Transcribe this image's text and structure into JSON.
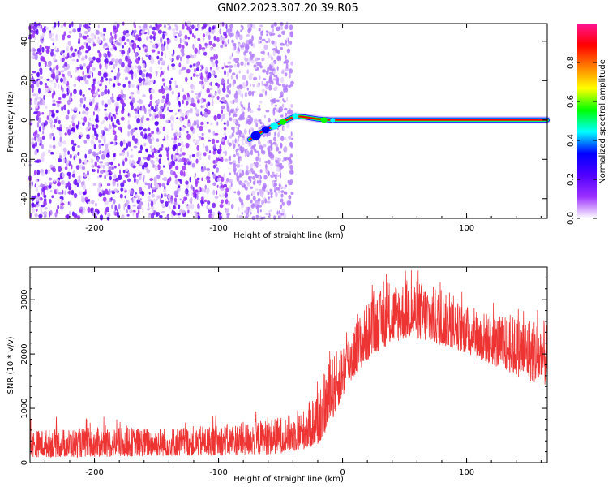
{
  "title": "GN02.2023.307.20.39.R05",
  "chart_data": [
    {
      "type": "heatmap",
      "name": "spectrogram",
      "xlabel": "Height of straight line (km)",
      "ylabel": "Frequency (Hz)",
      "xlim": [
        -252,
        165
      ],
      "ylim": [
        -50,
        49
      ],
      "x_ticks": [
        -200,
        -100,
        0,
        100
      ],
      "y_ticks": [
        -40,
        -20,
        0,
        20,
        40
      ],
      "noise_region": [
        -252,
        -40
      ],
      "signal_track": [
        {
          "x": -75,
          "y": -10
        },
        {
          "x": -65,
          "y": -6
        },
        {
          "x": -55,
          "y": -3
        },
        {
          "x": -45,
          "y": 0
        },
        {
          "x": -38,
          "y": 2
        },
        {
          "x": -30,
          "y": 1.5
        },
        {
          "x": -20,
          "y": 0.5
        },
        {
          "x": -10,
          "y": 0
        },
        {
          "x": 0,
          "y": 0
        },
        {
          "x": 165,
          "y": 0
        }
      ],
      "colorbar": {
        "label": "Normalized spectral amplitude",
        "range": [
          0.0,
          1.0
        ],
        "ticks": [
          "0.0",
          "0.2",
          "0.4",
          "0.6",
          "0.8"
        ],
        "tick_values": [
          0.0,
          0.2,
          0.4,
          0.6,
          0.8
        ],
        "colors": [
          "#ffffff",
          "#9b30ff",
          "#5000ff",
          "#0000ff",
          "#00ffff",
          "#00ff00",
          "#ffff00",
          "#ff7f00",
          "#ff0000",
          "#ff1493"
        ]
      },
      "grid": false
    },
    {
      "type": "line",
      "name": "snr",
      "xlabel": "Height of straight line (km)",
      "ylabel": "SNR (10 * v/v)",
      "xlim": [
        -252,
        165
      ],
      "ylim": [
        0,
        3600
      ],
      "x_ticks": [
        -200,
        -100,
        0,
        100
      ],
      "y_ticks": [
        0,
        1000,
        2000,
        3000
      ],
      "color": "#ee3333",
      "envelope": [
        {
          "x": -252,
          "low": 100,
          "high": 600
        },
        {
          "x": -200,
          "low": 100,
          "high": 650
        },
        {
          "x": -150,
          "low": 120,
          "high": 650
        },
        {
          "x": -100,
          "low": 130,
          "high": 700
        },
        {
          "x": -60,
          "low": 150,
          "high": 800
        },
        {
          "x": -40,
          "low": 200,
          "high": 900
        },
        {
          "x": -30,
          "low": 250,
          "high": 1000
        },
        {
          "x": -20,
          "low": 300,
          "high": 1400
        },
        {
          "x": -10,
          "low": 700,
          "high": 1900
        },
        {
          "x": 0,
          "low": 1200,
          "high": 2200
        },
        {
          "x": 10,
          "low": 1600,
          "high": 2600
        },
        {
          "x": 25,
          "low": 2000,
          "high": 3100
        },
        {
          "x": 40,
          "low": 2200,
          "high": 3300
        },
        {
          "x": 55,
          "low": 2300,
          "high": 3400
        },
        {
          "x": 70,
          "low": 2200,
          "high": 3300
        },
        {
          "x": 90,
          "low": 2100,
          "high": 3000
        },
        {
          "x": 110,
          "low": 1900,
          "high": 2800
        },
        {
          "x": 130,
          "low": 1700,
          "high": 2700
        },
        {
          "x": 150,
          "low": 1500,
          "high": 2700
        },
        {
          "x": 165,
          "low": 1400,
          "high": 2600
        }
      ],
      "grid": false
    }
  ]
}
